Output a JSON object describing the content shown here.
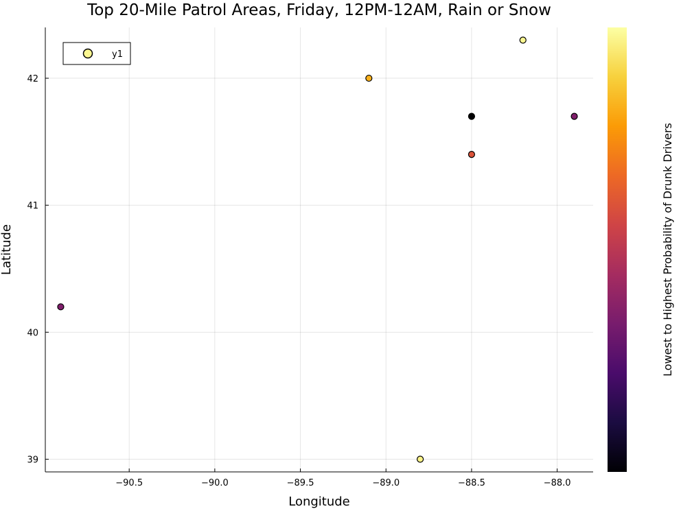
{
  "chart_data": {
    "type": "scatter",
    "title": "Top 20-Mile Patrol Areas, Friday, 12PM-12AM, Rain or Snow",
    "xlabel": "Longitude",
    "ylabel": "Latitude",
    "colorbar_label": "Lowest to Highest Probability of Drunk Drivers",
    "xlim": [
      -90.99,
      -87.79
    ],
    "ylim": [
      38.9,
      42.4
    ],
    "xticks": [
      -90.5,
      -90.0,
      -89.5,
      -89.0,
      -88.5,
      -88.0
    ],
    "xtick_labels": [
      "−90.5",
      "−90.0",
      "−89.5",
      "−89.0",
      "−88.5",
      "−88.0"
    ],
    "yticks": [
      39,
      40,
      41,
      42
    ],
    "ytick_labels": [
      "39",
      "40",
      "41",
      "42"
    ],
    "grid": true,
    "legend": {
      "position": "top-left",
      "entries": [
        "y1"
      ]
    },
    "colormap": [
      "#000004",
      "#1b0c41",
      "#4a0c6b",
      "#781c6d",
      "#a52c60",
      "#cf4446",
      "#ed6925",
      "#fb9b06",
      "#f7d13d",
      "#fcffa4"
    ],
    "series": [
      {
        "name": "y1",
        "x": [
          -90.9,
          -88.8,
          -88.5,
          -88.5,
          -89.1,
          -88.2,
          -87.9
        ],
        "y": [
          40.2,
          39.0,
          41.4,
          41.7,
          42.0,
          42.3,
          41.7
        ],
        "color_values": [
          0.35,
          0.97,
          0.6,
          0.0,
          0.82,
          0.98,
          0.35
        ]
      }
    ]
  }
}
